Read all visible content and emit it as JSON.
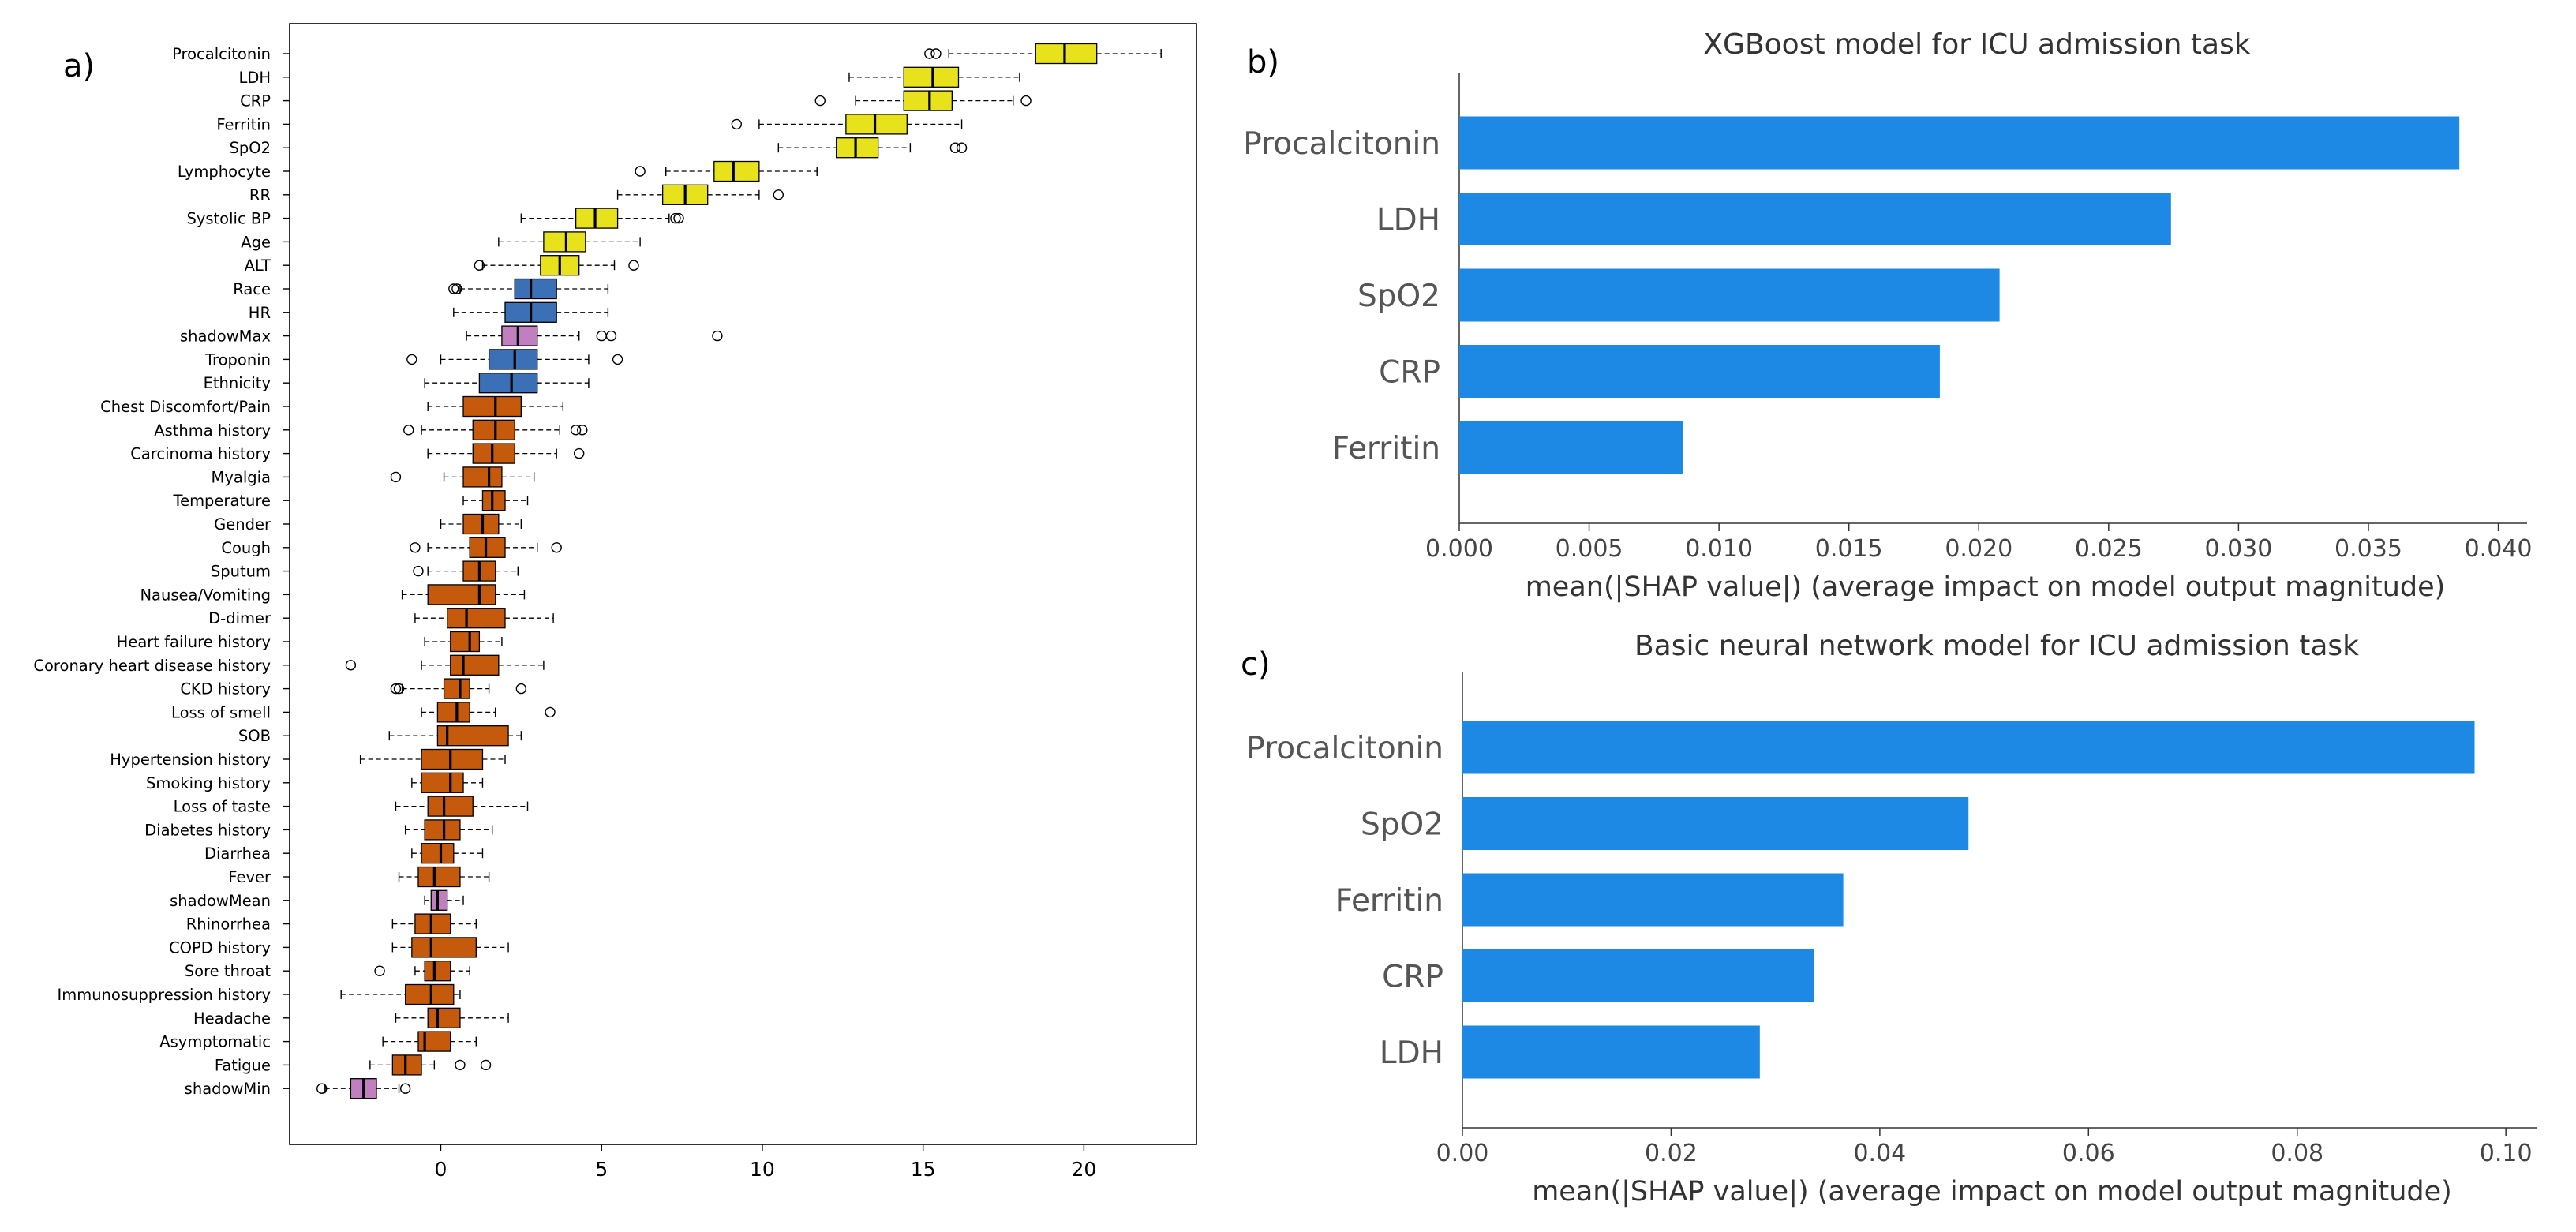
{
  "panels": [
    {
      "letter": "a)"
    },
    {
      "letter": "b)"
    },
    {
      "letter": "c)"
    }
  ],
  "chart_data": [
    {
      "type": "box",
      "panel": "a)",
      "title": "",
      "xlabel": "",
      "ylabel": "",
      "xlim": [
        -4.7,
        23.5
      ],
      "xticks": [
        0,
        5,
        10,
        15,
        20
      ],
      "grid": false,
      "legend": "none",
      "colors": {
        "confirmed": "#e8e21c",
        "tentative": "#3b6fb6",
        "rejected": "#c55a0c",
        "shadow": "#c27fbf"
      },
      "features": [
        {
          "name": "Procalcitonin",
          "group": "confirmed",
          "whisker_low": 15.8,
          "q1": 18.5,
          "median": 19.4,
          "q3": 20.4,
          "whisker_high": 22.4,
          "outliers": [
            15.2,
            15.4
          ]
        },
        {
          "name": "LDH",
          "group": "confirmed",
          "whisker_low": 12.7,
          "q1": 14.4,
          "median": 15.3,
          "q3": 16.1,
          "whisker_high": 18.0,
          "outliers": []
        },
        {
          "name": "CRP",
          "group": "confirmed",
          "whisker_low": 12.9,
          "q1": 14.4,
          "median": 15.2,
          "q3": 15.9,
          "whisker_high": 17.8,
          "outliers": [
            11.8,
            18.2
          ]
        },
        {
          "name": "Ferritin",
          "group": "confirmed",
          "whisker_low": 9.9,
          "q1": 12.6,
          "median": 13.5,
          "q3": 14.5,
          "whisker_high": 16.2,
          "outliers": [
            9.2
          ]
        },
        {
          "name": "SpO2",
          "group": "confirmed",
          "whisker_low": 10.5,
          "q1": 12.3,
          "median": 12.9,
          "q3": 13.6,
          "whisker_high": 14.6,
          "outliers": [
            16.0,
            16.2
          ]
        },
        {
          "name": "Lymphocyte",
          "group": "confirmed",
          "whisker_low": 7.0,
          "q1": 8.5,
          "median": 9.1,
          "q3": 9.9,
          "whisker_high": 11.7,
          "outliers": [
            6.2
          ]
        },
        {
          "name": "RR",
          "group": "confirmed",
          "whisker_low": 5.5,
          "q1": 6.9,
          "median": 7.6,
          "q3": 8.3,
          "whisker_high": 9.9,
          "outliers": [
            10.5
          ]
        },
        {
          "name": "Systolic BP",
          "group": "confirmed",
          "whisker_low": 2.5,
          "q1": 4.2,
          "median": 4.8,
          "q3": 5.5,
          "whisker_high": 7.1,
          "outliers": [
            7.3,
            7.4
          ]
        },
        {
          "name": "Age",
          "group": "confirmed",
          "whisker_low": 1.8,
          "q1": 3.2,
          "median": 3.9,
          "q3": 4.5,
          "whisker_high": 6.2,
          "outliers": []
        },
        {
          "name": "ALT",
          "group": "confirmed",
          "whisker_low": 1.3,
          "q1": 3.1,
          "median": 3.7,
          "q3": 4.3,
          "whisker_high": 5.4,
          "outliers": [
            1.2,
            6.0
          ]
        },
        {
          "name": "Race",
          "group": "tentative",
          "whisker_low": 0.6,
          "q1": 2.3,
          "median": 2.8,
          "q3": 3.6,
          "whisker_high": 5.2,
          "outliers": [
            0.4,
            0.5
          ]
        },
        {
          "name": "HR",
          "group": "tentative",
          "whisker_low": 0.4,
          "q1": 2.0,
          "median": 2.8,
          "q3": 3.6,
          "whisker_high": 5.2,
          "outliers": []
        },
        {
          "name": "shadowMax",
          "group": "shadow",
          "whisker_low": 0.8,
          "q1": 1.9,
          "median": 2.4,
          "q3": 3.0,
          "whisker_high": 4.3,
          "outliers": [
            5.0,
            5.3,
            8.6
          ]
        },
        {
          "name": "Troponin",
          "group": "tentative",
          "whisker_low": 0.0,
          "q1": 1.5,
          "median": 2.3,
          "q3": 3.0,
          "whisker_high": 4.6,
          "outliers": [
            -0.9,
            5.5
          ]
        },
        {
          "name": "Ethnicity",
          "group": "tentative",
          "whisker_low": -0.5,
          "q1": 1.2,
          "median": 2.2,
          "q3": 3.0,
          "whisker_high": 4.6,
          "outliers": []
        },
        {
          "name": "Chest Discomfort/Pain",
          "group": "rejected",
          "whisker_low": -0.4,
          "q1": 0.7,
          "median": 1.7,
          "q3": 2.5,
          "whisker_high": 3.8,
          "outliers": []
        },
        {
          "name": "Asthma history",
          "group": "rejected",
          "whisker_low": -0.6,
          "q1": 1.0,
          "median": 1.7,
          "q3": 2.3,
          "whisker_high": 3.7,
          "outliers": [
            -1.0,
            4.2,
            4.4
          ]
        },
        {
          "name": "Carcinoma history",
          "group": "rejected",
          "whisker_low": -0.4,
          "q1": 1.0,
          "median": 1.6,
          "q3": 2.3,
          "whisker_high": 3.6,
          "outliers": [
            4.3
          ]
        },
        {
          "name": "Myalgia",
          "group": "rejected",
          "whisker_low": 0.1,
          "q1": 0.7,
          "median": 1.5,
          "q3": 1.9,
          "whisker_high": 2.9,
          "outliers": [
            -1.4
          ]
        },
        {
          "name": "Temperature",
          "group": "rejected",
          "whisker_low": 0.7,
          "q1": 1.3,
          "median": 1.6,
          "q3": 2.0,
          "whisker_high": 2.7,
          "outliers": []
        },
        {
          "name": "Gender",
          "group": "rejected",
          "whisker_low": 0.0,
          "q1": 0.7,
          "median": 1.3,
          "q3": 1.8,
          "whisker_high": 2.5,
          "outliers": []
        },
        {
          "name": "Cough",
          "group": "rejected",
          "whisker_low": -0.4,
          "q1": 0.9,
          "median": 1.4,
          "q3": 2.0,
          "whisker_high": 3.0,
          "outliers": [
            -0.8,
            3.6
          ]
        },
        {
          "name": "Sputum",
          "group": "rejected",
          "whisker_low": -0.4,
          "q1": 0.7,
          "median": 1.2,
          "q3": 1.7,
          "whisker_high": 2.4,
          "outliers": [
            -0.7
          ]
        },
        {
          "name": "Nausea/Vomiting",
          "group": "rejected",
          "whisker_low": -1.2,
          "q1": -0.4,
          "median": 1.2,
          "q3": 1.7,
          "whisker_high": 2.6,
          "outliers": []
        },
        {
          "name": "D-dimer",
          "group": "rejected",
          "whisker_low": -0.8,
          "q1": 0.2,
          "median": 0.8,
          "q3": 2.0,
          "whisker_high": 3.5,
          "outliers": []
        },
        {
          "name": "Heart failure history",
          "group": "rejected",
          "whisker_low": -0.5,
          "q1": 0.3,
          "median": 0.9,
          "q3": 1.2,
          "whisker_high": 1.9,
          "outliers": []
        },
        {
          "name": "Coronary heart disease history",
          "group": "rejected",
          "whisker_low": -0.6,
          "q1": 0.3,
          "median": 0.7,
          "q3": 1.8,
          "whisker_high": 3.2,
          "outliers": [
            -2.8
          ]
        },
        {
          "name": "CKD history",
          "group": "rejected",
          "whisker_low": -1.2,
          "q1": 0.1,
          "median": 0.6,
          "q3": 0.9,
          "whisker_high": 1.5,
          "outliers": [
            -1.4,
            -1.3,
            2.5
          ]
        },
        {
          "name": "Loss of smell",
          "group": "rejected",
          "whisker_low": -0.6,
          "q1": -0.1,
          "median": 0.5,
          "q3": 0.9,
          "whisker_high": 1.7,
          "outliers": [
            3.4
          ]
        },
        {
          "name": "SOB",
          "group": "rejected",
          "whisker_low": -1.6,
          "q1": -0.1,
          "median": 0.2,
          "q3": 2.1,
          "whisker_high": 2.5,
          "outliers": []
        },
        {
          "name": "Hypertension history",
          "group": "rejected",
          "whisker_low": -2.5,
          "q1": -0.6,
          "median": 0.3,
          "q3": 1.3,
          "whisker_high": 2.0,
          "outliers": []
        },
        {
          "name": "Smoking history",
          "group": "rejected",
          "whisker_low": -0.9,
          "q1": -0.6,
          "median": 0.3,
          "q3": 0.7,
          "whisker_high": 1.3,
          "outliers": []
        },
        {
          "name": "Loss of taste",
          "group": "rejected",
          "whisker_low": -1.4,
          "q1": -0.4,
          "median": 0.1,
          "q3": 1.0,
          "whisker_high": 2.7,
          "outliers": []
        },
        {
          "name": "Diabetes history",
          "group": "rejected",
          "whisker_low": -1.1,
          "q1": -0.5,
          "median": 0.1,
          "q3": 0.6,
          "whisker_high": 1.6,
          "outliers": []
        },
        {
          "name": "Diarrhea",
          "group": "rejected",
          "whisker_low": -0.9,
          "q1": -0.6,
          "median": 0.0,
          "q3": 0.4,
          "whisker_high": 1.3,
          "outliers": []
        },
        {
          "name": "Fever",
          "group": "rejected",
          "whisker_low": -1.3,
          "q1": -0.7,
          "median": -0.2,
          "q3": 0.6,
          "whisker_high": 1.5,
          "outliers": []
        },
        {
          "name": "shadowMean",
          "group": "shadow",
          "whisker_low": -0.5,
          "q1": -0.3,
          "median": -0.1,
          "q3": 0.2,
          "whisker_high": 0.7,
          "outliers": []
        },
        {
          "name": "Rhinorrhea",
          "group": "rejected",
          "whisker_low": -1.5,
          "q1": -0.8,
          "median": -0.3,
          "q3": 0.3,
          "whisker_high": 1.1,
          "outliers": []
        },
        {
          "name": "COPD history",
          "group": "rejected",
          "whisker_low": -1.5,
          "q1": -0.9,
          "median": -0.3,
          "q3": 1.1,
          "whisker_high": 2.1,
          "outliers": []
        },
        {
          "name": "Sore throat",
          "group": "rejected",
          "whisker_low": -0.8,
          "q1": -0.5,
          "median": -0.2,
          "q3": 0.3,
          "whisker_high": 0.9,
          "outliers": [
            -1.9
          ]
        },
        {
          "name": "Immunosuppression history",
          "group": "rejected",
          "whisker_low": -3.1,
          "q1": -1.1,
          "median": -0.3,
          "q3": 0.4,
          "whisker_high": 0.6,
          "outliers": []
        },
        {
          "name": "Headache",
          "group": "rejected",
          "whisker_low": -1.4,
          "q1": -0.4,
          "median": -0.1,
          "q3": 0.6,
          "whisker_high": 2.1,
          "outliers": []
        },
        {
          "name": "Asymptomatic",
          "group": "rejected",
          "whisker_low": -1.8,
          "q1": -0.7,
          "median": -0.5,
          "q3": 0.3,
          "whisker_high": 1.1,
          "outliers": []
        },
        {
          "name": "Fatigue",
          "group": "rejected",
          "whisker_low": -2.2,
          "q1": -1.5,
          "median": -1.1,
          "q3": -0.6,
          "whisker_high": -0.2,
          "outliers": [
            0.6,
            1.4
          ]
        },
        {
          "name": "shadowMin",
          "group": "shadow",
          "whisker_low": -3.6,
          "q1": -2.8,
          "median": -2.4,
          "q3": -2.0,
          "whisker_high": -1.3,
          "outliers": [
            -3.7,
            -1.1
          ]
        }
      ]
    },
    {
      "type": "bar",
      "orientation": "horizontal",
      "panel": "b)",
      "title": "XGBoost model for ICU admission task",
      "xlabel": "mean(|SHAP value|) (average impact on model output magnitude)",
      "ylabel": "",
      "categories": [
        "Procalcitonin",
        "LDH",
        "SpO2",
        "CRP",
        "Ferritin"
      ],
      "values": [
        0.0385,
        0.0274,
        0.0208,
        0.0185,
        0.0086
      ],
      "xlim": [
        0,
        0.0405
      ],
      "xticks": [
        "0.000",
        "0.005",
        "0.010",
        "0.015",
        "0.020",
        "0.025",
        "0.030",
        "0.035",
        "0.040"
      ],
      "grid": false,
      "legend": "none",
      "bar_color": "#1e88e5"
    },
    {
      "type": "bar",
      "orientation": "horizontal",
      "panel": "c)",
      "title": "Basic neural network model for ICU admission task",
      "xlabel": "mean(|SHAP value|) (average impact on model output magnitude)",
      "ylabel": "",
      "categories": [
        "Procalcitonin",
        "SpO2",
        "Ferritin",
        "CRP",
        "LDH"
      ],
      "values": [
        0.097,
        0.0485,
        0.0365,
        0.0337,
        0.0285
      ],
      "xlim": [
        0,
        0.1015
      ],
      "xticks": [
        "0.00",
        "0.02",
        "0.04",
        "0.06",
        "0.08",
        "0.10"
      ],
      "grid": false,
      "legend": "none",
      "bar_color": "#1e88e5"
    }
  ]
}
